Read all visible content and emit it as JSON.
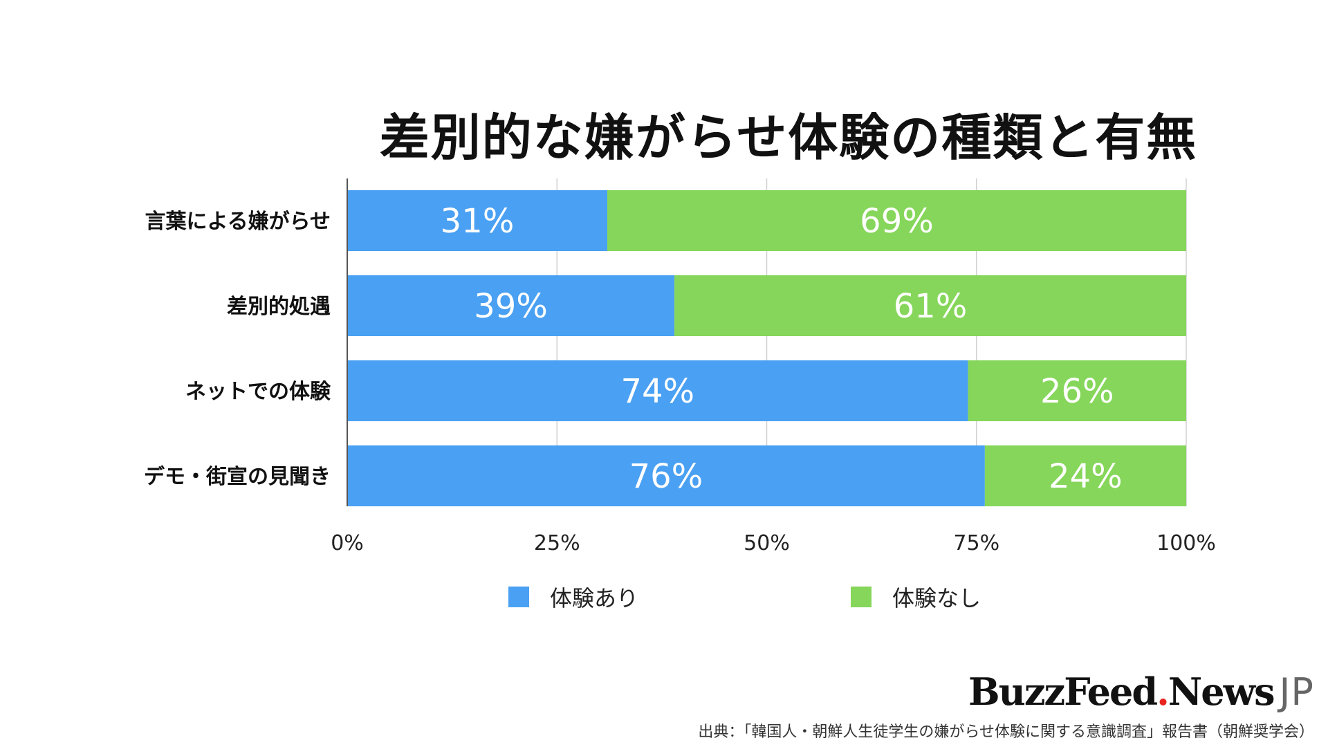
{
  "chart_data": {
    "type": "bar",
    "orientation": "horizontal",
    "stacked": true,
    "title": "差別的な嫌がらせ体験の種類と有無",
    "categories": [
      "言葉による嫌がらせ",
      "差別的処遇",
      "ネットでの体験",
      "デモ・街宣の見聞き"
    ],
    "series": [
      {
        "name": "体験あり",
        "values": [
          31,
          39,
          74,
          76
        ],
        "labels": [
          "31%",
          "39%",
          "74%",
          "76%"
        ],
        "color": "#4aa0f2"
      },
      {
        "name": "体験なし",
        "values": [
          69,
          61,
          26,
          24
        ],
        "labels": [
          "69%",
          "61%",
          "26%",
          "24%"
        ],
        "color": "#85d65a"
      }
    ],
    "xlim": [
      0,
      100
    ],
    "xticks": [
      "0%",
      "25%",
      "50%",
      "75%",
      "100%"
    ],
    "grid": true,
    "legend_position": "bottom"
  },
  "brand": {
    "name_part1": "BuzzFeed",
    "name_part2": "News",
    "suffix": "JP"
  },
  "source": "出典：「韓国人・朝鮮人生徒学生の嫌がらせ体験に関する意識調査」報告書（朝鮮奨学会）"
}
